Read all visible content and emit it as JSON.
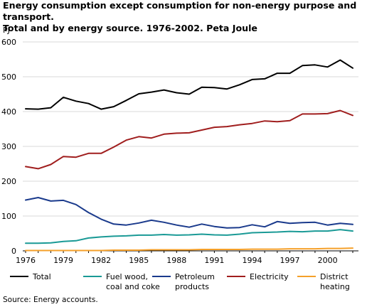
{
  "chart_data": {
    "type": "line",
    "title_line1": "Energy consumption except consumption for non-energy purpose and transport.",
    "title_line2": "Total and by energy source. 1976-2002. Peta Joule",
    "ylabel": "PJ",
    "ylim": [
      0,
      600
    ],
    "yticks": [
      0,
      100,
      200,
      300,
      400,
      500,
      600
    ],
    "xlim": [
      1976,
      2002
    ],
    "xtick_labels": [
      "1976",
      "1979",
      "1982",
      "1985",
      "1988",
      "1991",
      "1994",
      "1997",
      "2000"
    ],
    "grid": "horizontal",
    "legend_position": "bottom",
    "x": [
      1976,
      1977,
      1978,
      1979,
      1980,
      1981,
      1982,
      1983,
      1984,
      1985,
      1986,
      1987,
      1988,
      1989,
      1990,
      1991,
      1992,
      1993,
      1994,
      1995,
      1996,
      1997,
      1998,
      1999,
      2000,
      2001,
      2002
    ],
    "series": [
      {
        "name": "Total",
        "color": "#000000",
        "values": [
          408,
          407,
          411,
          441,
          430,
          423,
          407,
          414,
          432,
          451,
          456,
          462,
          454,
          450,
          470,
          469,
          465,
          477,
          492,
          494,
          510,
          510,
          532,
          534,
          528,
          548,
          525
        ]
      },
      {
        "name": "Fuel wood, coal and coke",
        "color": "#1a9a96",
        "values": [
          22,
          22,
          23,
          27,
          29,
          37,
          40,
          42,
          43,
          45,
          45,
          47,
          45,
          46,
          48,
          46,
          45,
          48,
          52,
          53,
          54,
          56,
          55,
          57,
          57,
          61,
          57
        ]
      },
      {
        "name": "Petroleum products",
        "color": "#1a3a8c",
        "values": [
          146,
          153,
          143,
          145,
          133,
          110,
          91,
          77,
          74,
          80,
          88,
          82,
          74,
          68,
          77,
          70,
          66,
          67,
          75,
          69,
          84,
          79,
          81,
          82,
          74,
          79,
          76
        ]
      },
      {
        "name": "Electricity",
        "color": "#a01e1e",
        "values": [
          242,
          236,
          248,
          271,
          269,
          280,
          280,
          298,
          318,
          328,
          324,
          335,
          338,
          339,
          347,
          355,
          357,
          362,
          366,
          373,
          371,
          374,
          393,
          393,
          394,
          403,
          389
        ]
      },
      {
        "name": "District heating",
        "color": "#f5a02a",
        "values": [
          1,
          1,
          1,
          1,
          1,
          1,
          1,
          2,
          2,
          2,
          3,
          3,
          3,
          3,
          4,
          4,
          4,
          4,
          5,
          5,
          5,
          6,
          6,
          6,
          7,
          7,
          8
        ]
      }
    ],
    "legend": [
      {
        "line1": "Total",
        "line2": ""
      },
      {
        "line1": "Fuel wood,",
        "line2": "coal and coke"
      },
      {
        "line1": "Petroleum",
        "line2": "products"
      },
      {
        "line1": "Electricity",
        "line2": ""
      },
      {
        "line1": "District",
        "line2": "heating"
      }
    ],
    "source": "Source: Energy accounts."
  }
}
